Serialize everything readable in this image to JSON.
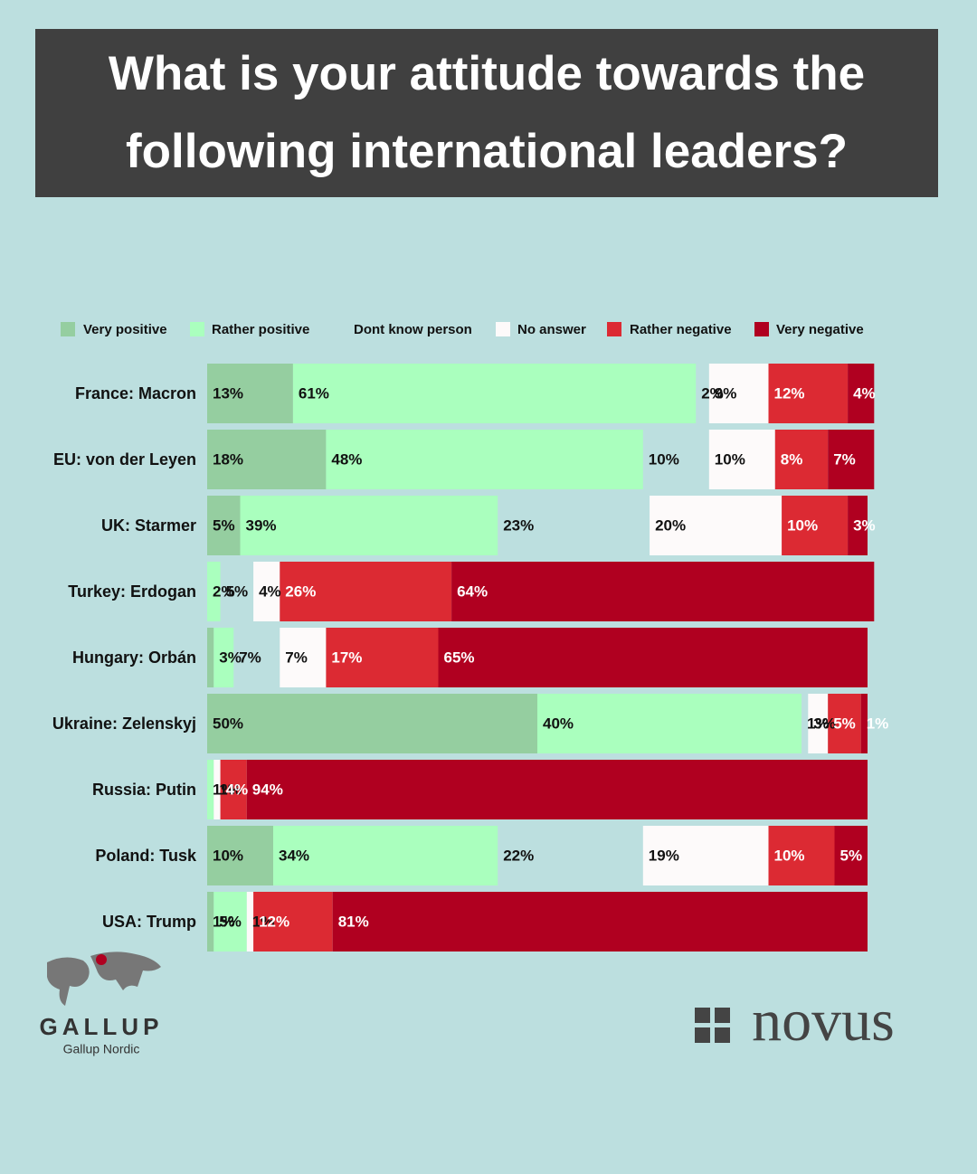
{
  "chart_data": {
    "type": "stacked-bar-horizontal",
    "title": "What is your attitude towards the following international leaders?",
    "categories": [
      "France: Macron",
      "EU: von der Leyen",
      "UK: Starmer",
      "Turkey: Erdogan",
      "Hungary: Orbán",
      "Ukraine: Zelenskyj",
      "Russia: Putin",
      "Poland: Tusk",
      "USA: Trump"
    ],
    "xlim": [
      0,
      100
    ],
    "series": [
      {
        "name": "Very positive",
        "color": "#95cea0",
        "values": [
          13,
          18,
          5,
          0,
          1,
          50,
          0,
          10,
          1
        ],
        "value_labels": [
          "13%",
          "18%",
          "5%",
          null,
          null,
          "50%",
          null,
          "10%",
          "1%"
        ]
      },
      {
        "name": "Rather positive",
        "color": "#aaffbe",
        "values": [
          61,
          48,
          39,
          2,
          3,
          40,
          1,
          34,
          5
        ],
        "value_labels": [
          "61%",
          "48%",
          "39%",
          "2%",
          "3%",
          "40%",
          "1%",
          "34%",
          "5%"
        ]
      },
      {
        "name": "Dont know person",
        "color": "transparent",
        "values": [
          2,
          10,
          23,
          5,
          7,
          1,
          0,
          22,
          0
        ],
        "value_labels": [
          "2%",
          "10%",
          "23%",
          "5%",
          "7%",
          "1%",
          null,
          "22%",
          null
        ]
      },
      {
        "name": "No answer",
        "color": "#fdfafa",
        "values": [
          9,
          10,
          20,
          4,
          7,
          3,
          1,
          19,
          1
        ],
        "value_labels": [
          "9%",
          "10%",
          "20%",
          "4%",
          "7%",
          "3%",
          "1%",
          "19%",
          "1%"
        ]
      },
      {
        "name": "Rather negative",
        "color": "#dc2a33",
        "values": [
          12,
          8,
          10,
          26,
          17,
          5,
          4,
          10,
          12
        ],
        "value_labels": [
          "12%",
          "8%",
          "10%",
          "26%",
          "17%",
          "5%",
          "4%",
          "10%",
          "12%"
        ]
      },
      {
        "name": "Very negative",
        "color": "#b00020",
        "values": [
          4,
          7,
          3,
          64,
          65,
          1,
          94,
          5,
          81
        ],
        "value_labels": [
          "4%",
          "7%",
          "3%",
          "64%",
          "65%",
          "1%",
          "94%",
          "5%",
          "81%"
        ]
      }
    ],
    "label_colors": [
      "#111111",
      "#111111",
      "#111111",
      "#111111",
      "#ffffff",
      "#ffffff"
    ]
  },
  "footer": {
    "left_logo": "GALLUP",
    "left_sub": "Gallup Nordic",
    "right_logo": "novus"
  }
}
